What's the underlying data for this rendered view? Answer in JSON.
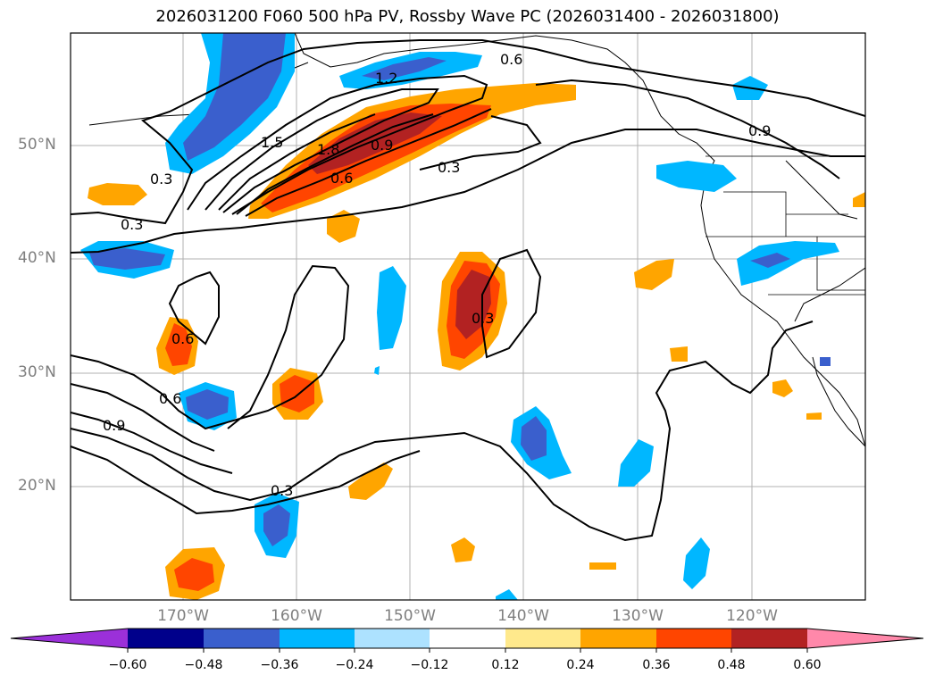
{
  "title": "2026031200 F060 500 hPa PV, Rossby Wave PC (2026031400 - 2026031800)",
  "lat_labels": [
    "50°N",
    "40°N",
    "30°N",
    "20°N"
  ],
  "lon_labels": [
    "170°W",
    "160°W",
    "150°W",
    "140°W",
    "130°W",
    "120°W"
  ],
  "colorbar": {
    "ticks": [
      "−0.60",
      "−0.48",
      "−0.36",
      "−0.24",
      "−0.12",
      "0.12",
      "0.24",
      "0.36",
      "0.48",
      "0.60"
    ],
    "colors": [
      "#9b30d9",
      "#00008b",
      "#3a5fcd",
      "#00b7ff",
      "#ade2ff",
      "#ffffff",
      "#ffe98c",
      "#ffa500",
      "#ff4500",
      "#b22222",
      "#ff88aa"
    ]
  },
  "contour_labels": [
    "0.6",
    "1.2",
    "1.5",
    "1.8",
    "0.9",
    "0.6",
    "0.3",
    "0.3",
    "0.3",
    "0.9",
    "0.6",
    "0.3",
    "0.6",
    "0.9",
    "0.3"
  ]
}
